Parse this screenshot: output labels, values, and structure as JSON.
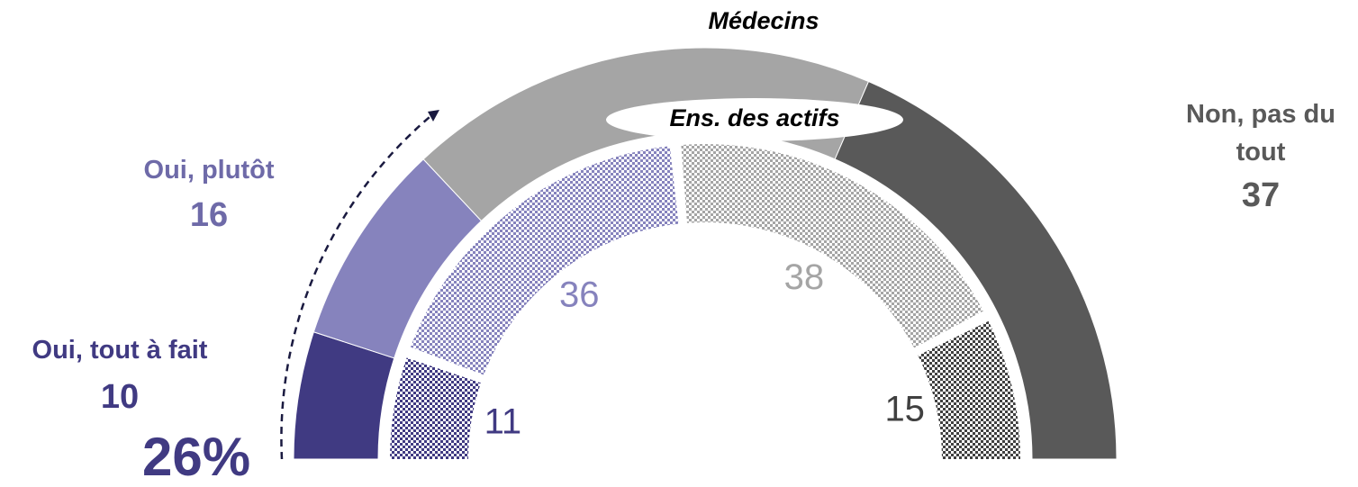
{
  "chart_data": {
    "type": "semi-donut",
    "categories": [
      "Oui, tout à fait",
      "Oui, plutôt",
      null,
      "Non, pas du tout"
    ],
    "series": [
      {
        "name": "Médecins",
        "colors": [
          "#403a82",
          "#8683bd",
          "#a5a5a5",
          "#595959"
        ],
        "values": [
          10,
          16,
          37,
          37
        ]
      },
      {
        "name": "Ens. des actifs",
        "colors": [
          "#403a82",
          "#8683bd",
          "#a5a5a5",
          "#404040"
        ],
        "values": [
          11,
          36,
          38,
          15
        ]
      }
    ],
    "total_label": "26%"
  }
}
